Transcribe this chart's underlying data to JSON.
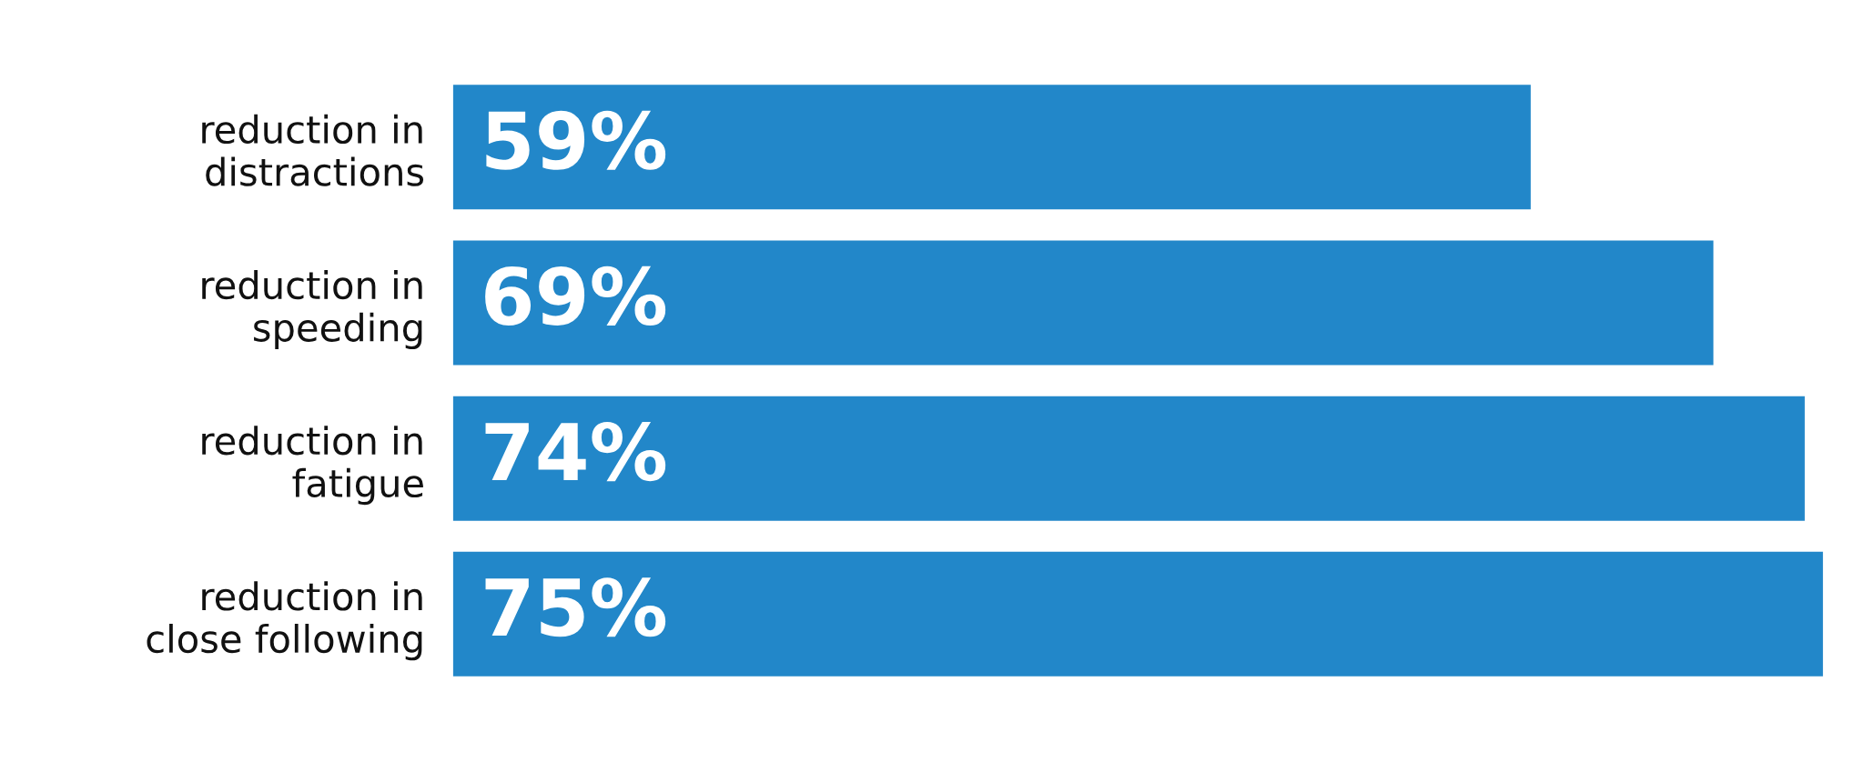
{
  "chart_data": {
    "type": "bar",
    "orientation": "horizontal",
    "categories": [
      "reduction in\ndistractions",
      "reduction in\nspeeding",
      "reduction in\nfatigue",
      "reduction in\nclose following"
    ],
    "values": [
      59,
      69,
      74,
      75
    ],
    "value_labels": [
      "59%",
      "69%",
      "74%",
      "75%"
    ],
    "color": "#2287c9",
    "xlim": [
      0,
      75
    ],
    "grid": false,
    "legend": false,
    "tick_labels": "y"
  }
}
